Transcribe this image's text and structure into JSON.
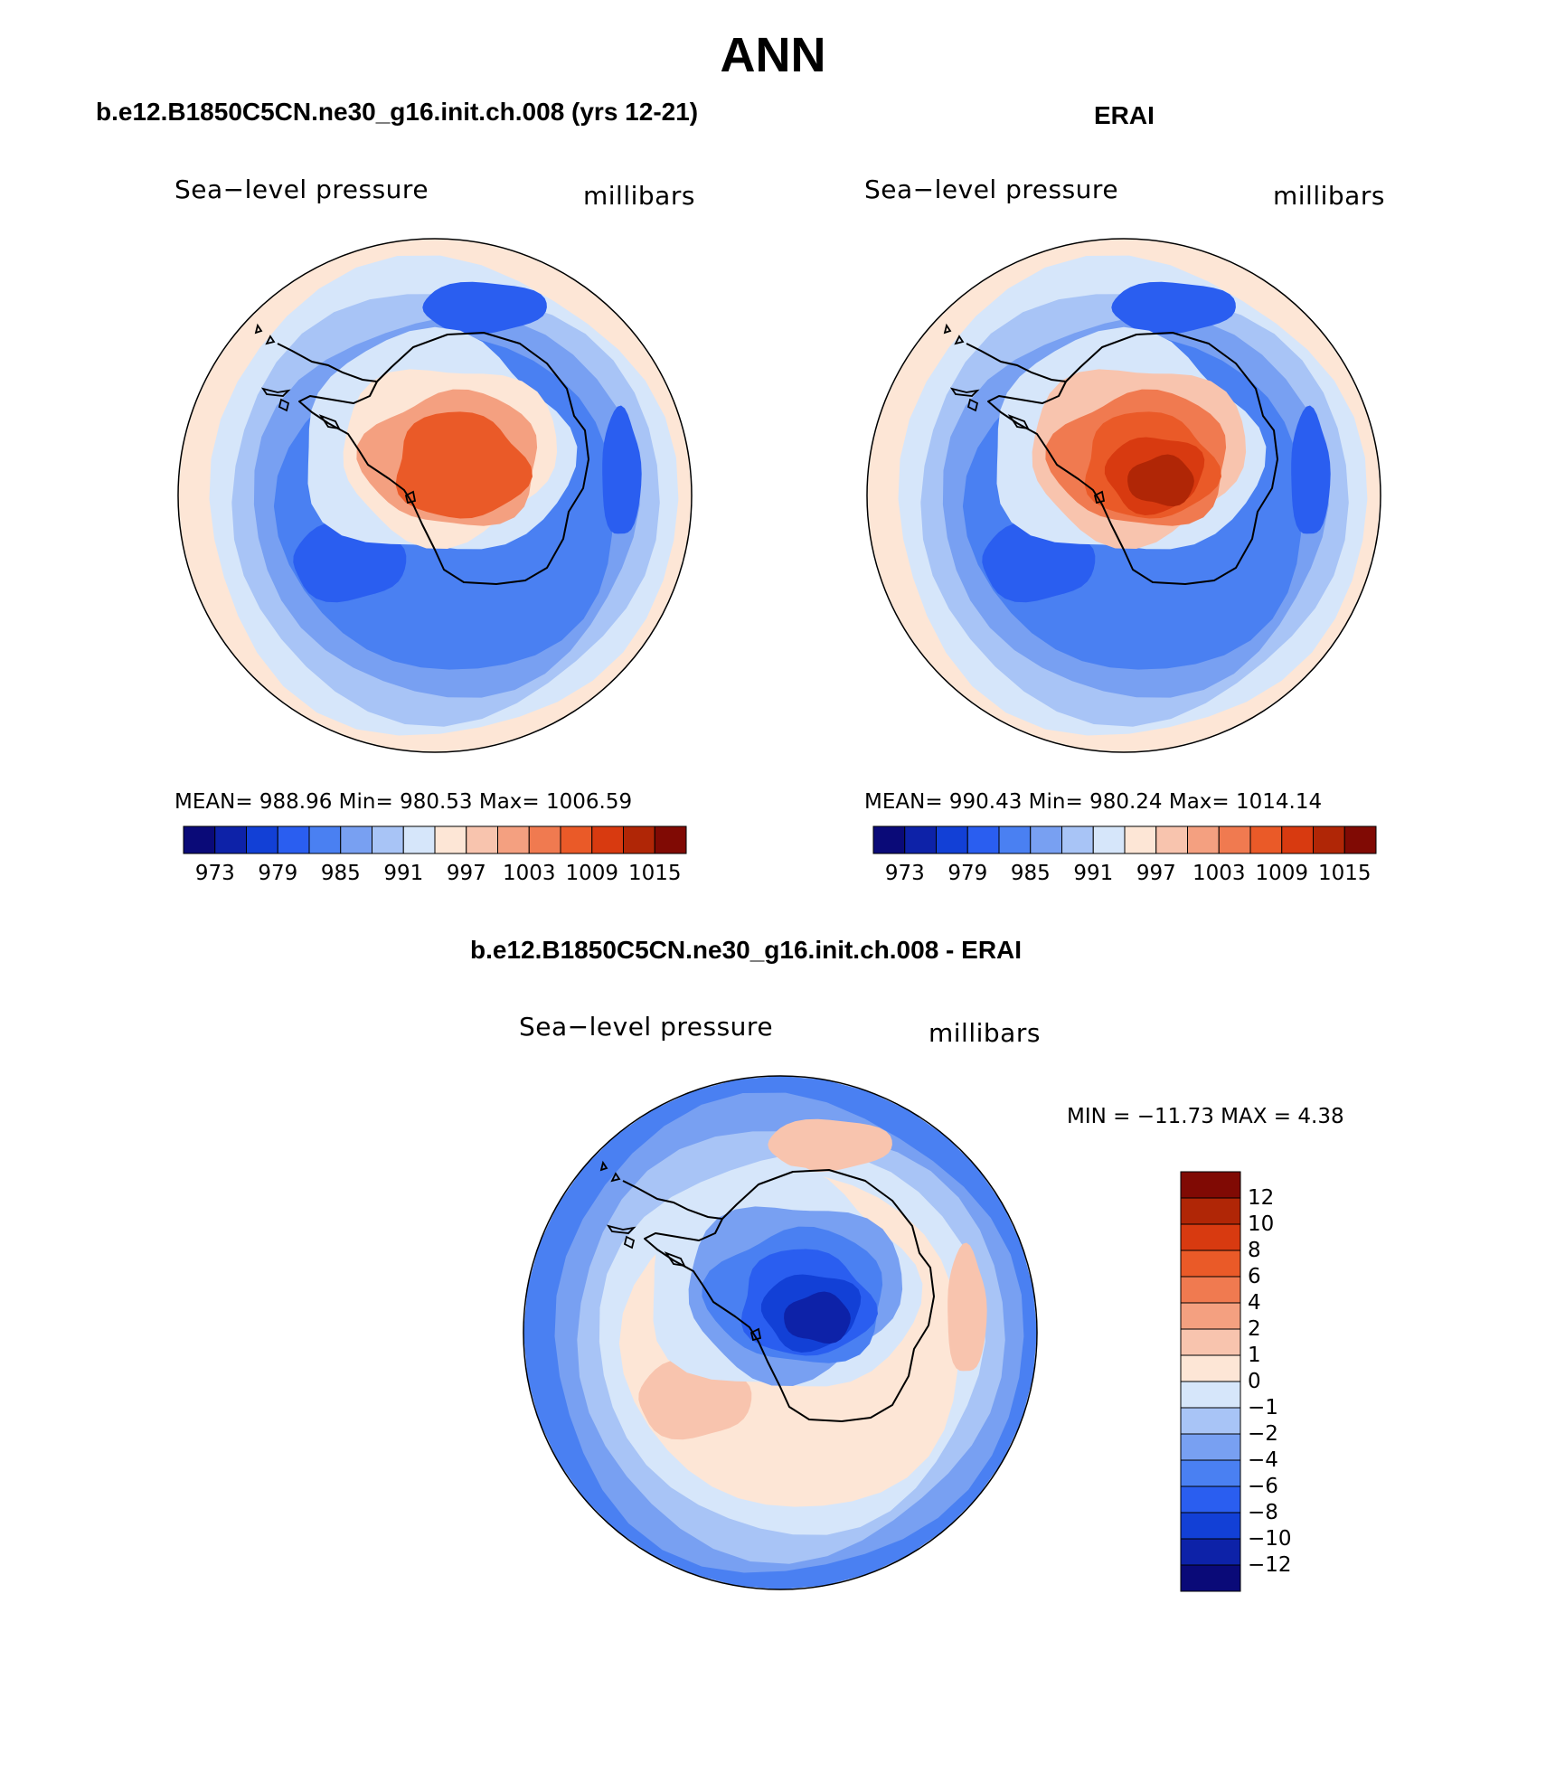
{
  "page_title": "ANN",
  "panels": [
    {
      "case_title": "b.e12.B1850C5CN.ne30_g16.init.ch.008 (yrs 12-21)",
      "left_label": "Sea−level pressure",
      "right_label": "millibars",
      "stats": "MEAN=  988.96    Min=  980.53    Max=  1006.59",
      "colorbar_labels": [
        "973",
        "979",
        "985",
        "991",
        "997",
        "1003",
        "1009",
        "1015"
      ]
    },
    {
      "case_title": "ERAI",
      "left_label": "Sea−level pressure",
      "right_label": "millibars",
      "stats": "MEAN=  990.43    Min=  980.24    Max=  1014.14",
      "colorbar_labels": [
        "973",
        "979",
        "985",
        "991",
        "997",
        "1003",
        "1009",
        "1015"
      ]
    },
    {
      "case_title": "b.e12.B1850C5CN.ne30_g16.init.ch.008 - ERAI",
      "left_label": "Sea−level pressure",
      "right_label": "millibars",
      "stats": "MIN  =  −11.73  MAX  =      4.38",
      "colorbar_labels": [
        "12",
        "10",
        "8",
        "6",
        "4",
        "2",
        "1",
        "0",
        "−1",
        "−2",
        "−4",
        "−6",
        "−8",
        "−10",
        "−12"
      ]
    }
  ],
  "palette": [
    "#0a0a78",
    "#0d22a8",
    "#1240d6",
    "#2a5ef0",
    "#4a80f2",
    "#78a0f2",
    "#a8c4f6",
    "#d6e6fa",
    "#fde6d6",
    "#f8c4ae",
    "#f4a080",
    "#f07a50",
    "#ea5a28",
    "#d83a10",
    "#b02606",
    "#800a04"
  ],
  "panel_fields": {
    "model": [
      "#fde6d6",
      "#d6e6fa",
      "#a8c4f6",
      "#78a0f2",
      "#4a80f2",
      "#2a5ef0",
      "#d6e6fa",
      "#fde6d6",
      "#f4a080",
      "#ea5a28"
    ],
    "obs": [
      "#fde6d6",
      "#d6e6fa",
      "#a8c4f6",
      "#78a0f2",
      "#4a80f2",
      "#2a5ef0",
      "#d6e6fa",
      "#f8c4ae",
      "#f07a50",
      "#ea5a28",
      "#d83a10",
      "#b02606"
    ],
    "diff": [
      "#4a80f2",
      "#78a0f2",
      "#a8c4f6",
      "#d6e6fa",
      "#fde6d6",
      "#f8c4ae",
      "#d6e6fa",
      "#78a0f2",
      "#4a80f2",
      "#2a5ef0",
      "#1240d6",
      "#0d22a8"
    ]
  }
}
